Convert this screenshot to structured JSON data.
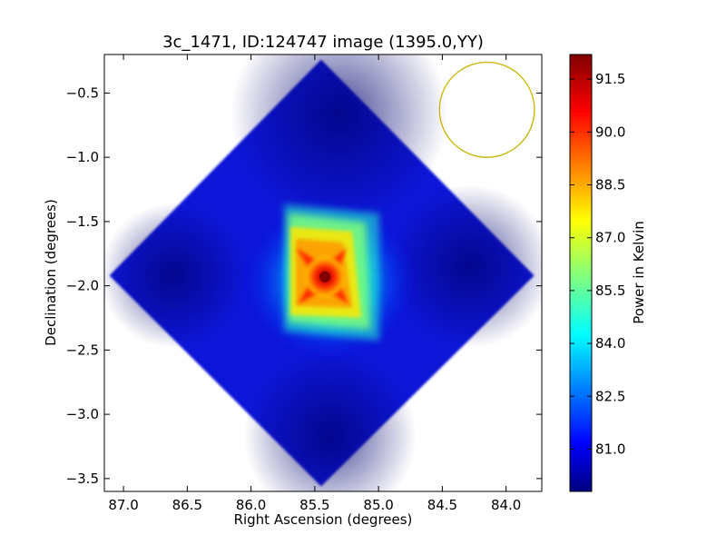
{
  "chart_data": {
    "type": "heatmap",
    "title": "3c_1471, ID:124747 image (1395.0,YY)",
    "xlabel": "Right Ascension (degrees)",
    "ylabel": "Declination (degrees)",
    "xlim": [
      87.15,
      83.72
    ],
    "ylim": [
      -3.6,
      -0.2
    ],
    "xticks": [
      87.0,
      86.5,
      86.0,
      85.5,
      85.0,
      84.5,
      84.0
    ],
    "xtick_labels": [
      "87.0",
      "86.5",
      "86.0",
      "85.5",
      "85.0",
      "84.5",
      "84.0"
    ],
    "yticks": [
      -0.5,
      -1.0,
      -1.5,
      -2.0,
      -2.5,
      -3.0,
      -3.5
    ],
    "ytick_labels": [
      "−0.5",
      "−1.0",
      "−1.5",
      "−2.0",
      "−2.5",
      "−3.0",
      "−3.5"
    ],
    "colorbar": {
      "label": "Power in Kelvin",
      "range": [
        79.8,
        92.2
      ],
      "colormap": "jet",
      "ticks": [
        81.0,
        82.5,
        84.0,
        85.5,
        87.0,
        88.5,
        90.0,
        91.5
      ],
      "tick_labels": [
        "81.0",
        "82.5",
        "84.0",
        "85.5",
        "87.0",
        "88.5",
        "90.0",
        "91.5"
      ]
    },
    "map_footprint": {
      "shape": "diamond",
      "vertices_deg": [
        [
          85.45,
          -0.24
        ],
        [
          83.78,
          -1.92
        ],
        [
          85.45,
          -3.56
        ],
        [
          87.11,
          -1.92
        ]
      ],
      "background_level_K": 80.3
    },
    "source": {
      "center_deg": [
        85.42,
        -1.93
      ],
      "peak_K": 92.0
    },
    "beam": {
      "shape": "circle",
      "center_deg": [
        84.15,
        -0.63
      ],
      "radius_deg": 0.37,
      "color": "#c8b400"
    }
  }
}
